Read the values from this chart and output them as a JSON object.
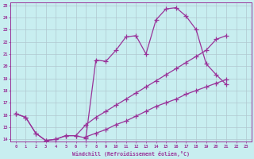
{
  "xlabel": "Windchill (Refroidissement éolien,°C)",
  "bg_color": "#c8eef0",
  "line_color": "#993399",
  "grid_color": "#b0c8d0",
  "xlim": [
    -0.5,
    23.5
  ],
  "ylim": [
    13.8,
    25.2
  ],
  "xticks": [
    0,
    1,
    2,
    3,
    4,
    5,
    6,
    7,
    8,
    9,
    10,
    11,
    12,
    13,
    14,
    15,
    16,
    17,
    18,
    19,
    20,
    21,
    22,
    23
  ],
  "yticks": [
    14,
    15,
    16,
    17,
    18,
    19,
    20,
    21,
    22,
    23,
    24,
    25
  ],
  "line1_x": [
    0,
    1,
    2,
    3,
    4,
    5,
    6,
    7,
    8,
    9,
    10,
    11,
    12,
    13,
    14,
    15,
    16,
    17,
    18,
    19,
    20,
    21
  ],
  "line1_y": [
    16.1,
    15.8,
    14.5,
    13.9,
    14.0,
    14.3,
    14.3,
    14.1,
    20.5,
    20.4,
    21.3,
    22.4,
    22.5,
    21.0,
    23.8,
    24.7,
    24.8,
    24.1,
    23.0,
    20.2,
    19.3,
    18.5
  ],
  "line2_x": [
    0,
    1,
    2,
    3,
    4,
    5,
    6,
    7,
    8,
    9,
    10,
    11,
    12,
    13,
    14,
    15,
    16,
    17,
    18,
    19,
    20,
    21
  ],
  "line2_y": [
    16.1,
    15.8,
    14.5,
    13.9,
    14.0,
    14.3,
    14.3,
    15.2,
    15.8,
    16.3,
    16.8,
    17.3,
    17.8,
    18.3,
    18.8,
    19.3,
    19.8,
    20.3,
    20.8,
    21.3,
    22.2,
    22.5
  ],
  "line3_x": [
    7,
    8,
    9,
    10,
    11,
    12,
    13,
    14,
    15,
    16,
    17,
    18,
    19,
    20,
    21
  ],
  "line3_y": [
    14.2,
    14.5,
    14.8,
    15.2,
    15.5,
    15.9,
    16.3,
    16.7,
    17.0,
    17.3,
    17.7,
    18.0,
    18.3,
    18.6,
    18.9
  ]
}
